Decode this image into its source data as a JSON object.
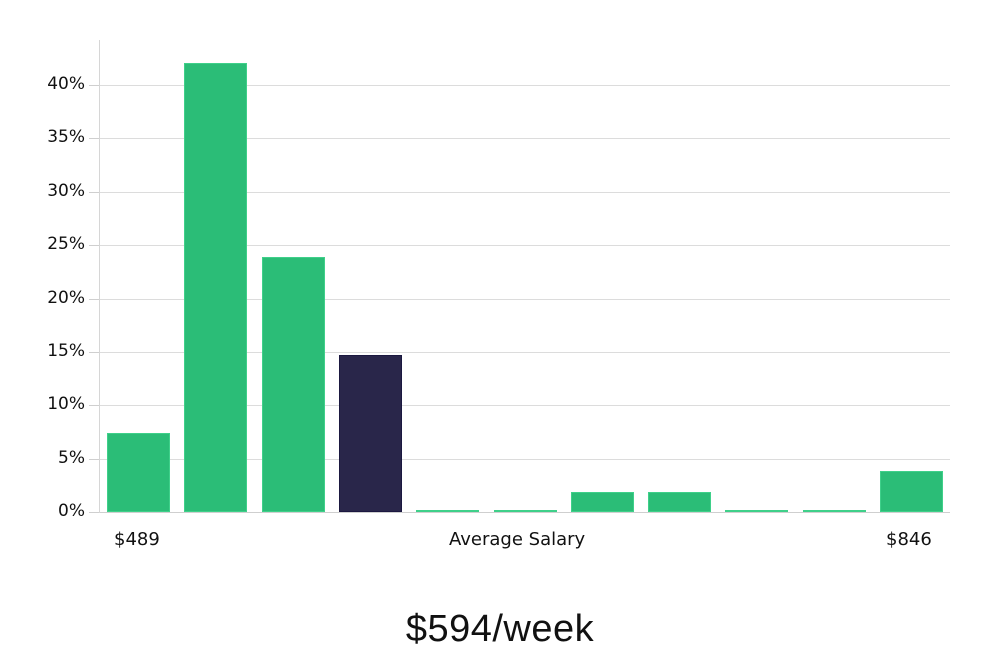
{
  "chart_data": {
    "type": "bar",
    "title": "",
    "xlabel": "Average Salary",
    "ylabel": "",
    "ylim": [
      0,
      44
    ],
    "yticks": [
      "0%",
      "5%",
      "10%",
      "15%",
      "20%",
      "25%",
      "30%",
      "35%",
      "40%"
    ],
    "ytick_values": [
      0,
      5,
      10,
      15,
      20,
      25,
      30,
      35,
      40
    ],
    "grid": true,
    "x_range_labels": {
      "min": "$489",
      "max": "$846"
    },
    "categories": [
      "bin1",
      "bin2",
      "bin3",
      "bin4",
      "bin5",
      "bin6",
      "bin7",
      "bin8",
      "bin9",
      "bin10",
      "bin11"
    ],
    "values": [
      7.4,
      42.1,
      23.9,
      14.7,
      0,
      0,
      1.9,
      1.9,
      0,
      0,
      3.8
    ],
    "highlight_index": 3,
    "colors": {
      "bar": "#2bbd77",
      "highlight": "#29264a",
      "grid": "#dcdcdc"
    }
  },
  "axis": {
    "x_min_label": "$489",
    "x_center_label": "Average Salary",
    "x_max_label": "$846"
  },
  "summary": {
    "value": "$594/week"
  }
}
